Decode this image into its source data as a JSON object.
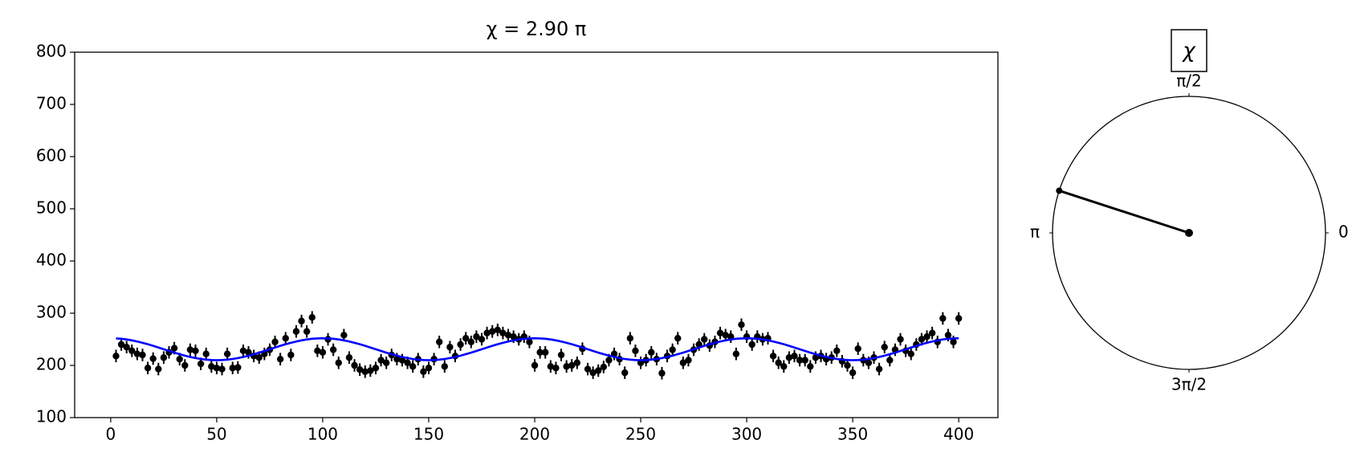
{
  "chart_data": [
    {
      "type": "scatter",
      "title": "χ = 2.90 π",
      "x": [
        2.5,
        5,
        7.5,
        10,
        12.5,
        15,
        17.5,
        20,
        22.5,
        25,
        27.5,
        30,
        32.5,
        35,
        37.5,
        40,
        42.5,
        45,
        47.5,
        50,
        52.5,
        55,
        57.5,
        60,
        62.5,
        65,
        67.5,
        70,
        72.5,
        75,
        77.5,
        80,
        82.5,
        85,
        87.5,
        90,
        92.5,
        95,
        97.5,
        100,
        102.5,
        105,
        107.5,
        110,
        112.5,
        115,
        117.5,
        120,
        122.5,
        125,
        127.5,
        130,
        132.5,
        135,
        137.5,
        140,
        142.5,
        145,
        147.5,
        150,
        152.5,
        155,
        157.5,
        160,
        162.5,
        165,
        167.5,
        170,
        172.5,
        175,
        177.5,
        180,
        182.5,
        185,
        187.5,
        190,
        192.5,
        195,
        197.5,
        200,
        202.5,
        205,
        207.5,
        210,
        212.5,
        215,
        217.5,
        220,
        222.5,
        225,
        227.5,
        230,
        232.5,
        235,
        237.5,
        240,
        242.5,
        245,
        247.5,
        250,
        252.5,
        255,
        257.5,
        260,
        262.5,
        265,
        267.5,
        270,
        272.5,
        275,
        277.5,
        280,
        282.5,
        285,
        287.5,
        290,
        292.5,
        295,
        297.5,
        300,
        302.5,
        305,
        307.5,
        310,
        312.5,
        315,
        317.5,
        320,
        322.5,
        325,
        327.5,
        330,
        332.5,
        335,
        337.5,
        340,
        342.5,
        345,
        347.5,
        350,
        352.5,
        355,
        357.5,
        360,
        362.5,
        365,
        367.5,
        370,
        372.5,
        375,
        377.5,
        380,
        382.5,
        385,
        387.5,
        390,
        392.5,
        395,
        397.5,
        400
      ],
      "series": [
        {
          "color": "#000000",
          "yerr": 12,
          "values": [
            218,
            240,
            235,
            228,
            222,
            220,
            195,
            213,
            193,
            215,
            225,
            233,
            212,
            200,
            230,
            228,
            203,
            222,
            198,
            195,
            193,
            222,
            195,
            196,
            228,
            225,
            218,
            215,
            222,
            230,
            245,
            212,
            252,
            220,
            265,
            285,
            265,
            292,
            228,
            225,
            250,
            230,
            205,
            258,
            215,
            200,
            192,
            188,
            190,
            195,
            210,
            205,
            220,
            212,
            210,
            205,
            198,
            212,
            188,
            195,
            212,
            245,
            198,
            235,
            218,
            240,
            252,
            245,
            255,
            250,
            262,
            265,
            268,
            262,
            258,
            255,
            250,
            255,
            245,
            200,
            225,
            225,
            198,
            195,
            220,
            198,
            200,
            205,
            232,
            193,
            186,
            190,
            197,
            210,
            222,
            212,
            186,
            252,
            228,
            205,
            210,
            225,
            212,
            185,
            218,
            230,
            252,
            205,
            210,
            230,
            240,
            250,
            238,
            245,
            262,
            258,
            255,
            222,
            278,
            255,
            240,
            255,
            250,
            252,
            218,
            205,
            198,
            215,
            218,
            210,
            210,
            198,
            215,
            218,
            212,
            215,
            228,
            208,
            200,
            186,
            232,
            210,
            205,
            215,
            193,
            235,
            210,
            230,
            250,
            228,
            222,
            240,
            250,
            255,
            262,
            245,
            290,
            258,
            245,
            290
          ]
        },
        {
          "type": "line",
          "color": "#0000ff",
          "values": [
            251.7,
            251.0,
            249.7,
            248.0,
            245.8,
            243.3,
            240.5,
            237.5,
            234.3,
            231,
            227.7,
            224.5,
            221.5,
            218.7,
            216.2,
            214.0,
            212.3,
            211.0,
            210.3,
            210,
            210.3,
            211.0,
            212.3,
            214.0,
            216.2,
            218.7,
            221.5,
            224.5,
            227.7,
            231,
            234.3,
            237.5,
            240.5,
            243.3,
            245.8,
            248.0,
            249.7,
            251.0,
            251.7,
            252,
            251.7,
            251.0,
            249.7,
            248.0,
            245.8,
            243.3,
            240.5,
            237.5,
            234.3,
            231,
            227.7,
            224.5,
            221.5,
            218.7,
            216.2,
            214.0,
            212.3,
            211.0,
            210.3,
            210,
            210.3,
            211.0,
            212.3,
            214.0,
            216.2,
            218.7,
            221.5,
            224.5,
            227.7,
            231,
            234.3,
            237.5,
            240.5,
            243.3,
            245.8,
            248.0,
            249.7,
            251.0,
            251.7,
            252,
            251.7,
            251.0,
            249.7,
            248.0,
            245.8,
            243.3,
            240.5,
            237.5,
            234.3,
            231,
            227.7,
            224.5,
            221.5,
            218.7,
            216.2,
            214.0,
            212.3,
            211.0,
            210.3,
            210,
            210.3,
            211.0,
            212.3,
            214.0,
            216.2,
            218.7,
            221.5,
            224.5,
            227.7,
            231,
            234.3,
            237.5,
            240.5,
            243.3,
            245.8,
            248.0,
            249.7,
            251.0,
            251.7,
            252,
            251.7,
            251.0,
            249.7,
            248.0,
            245.8,
            243.3,
            240.5,
            237.5,
            234.3,
            231,
            227.7,
            224.5,
            221.5,
            218.7,
            216.2,
            214.0,
            212.3,
            211.0,
            210.3,
            210,
            210.3,
            211.0,
            212.3,
            214.0,
            216.2,
            218.7,
            221.5,
            224.5,
            227.7,
            231,
            234.3,
            237.5,
            240.5,
            243.3,
            245.8,
            248.0,
            249.7,
            251.0,
            251.7,
            252
          ]
        }
      ],
      "xlim": [
        -17,
        418.5
      ],
      "xticks": [
        0,
        50,
        100,
        150,
        200,
        250,
        300,
        350,
        400
      ],
      "ylim": [
        100,
        800
      ],
      "yticks": [
        100,
        200,
        300,
        400,
        500,
        600,
        700,
        800
      ]
    },
    {
      "type": "polar",
      "title": "χ",
      "value": 2.9,
      "color": "#000000",
      "angle_ticks": [
        {
          "value": 0,
          "label": "0"
        },
        {
          "value": 0.5,
          "label": "π/2"
        },
        {
          "value": 1,
          "label": "π"
        },
        {
          "value": 1.5,
          "label": "3π/2"
        }
      ]
    }
  ]
}
